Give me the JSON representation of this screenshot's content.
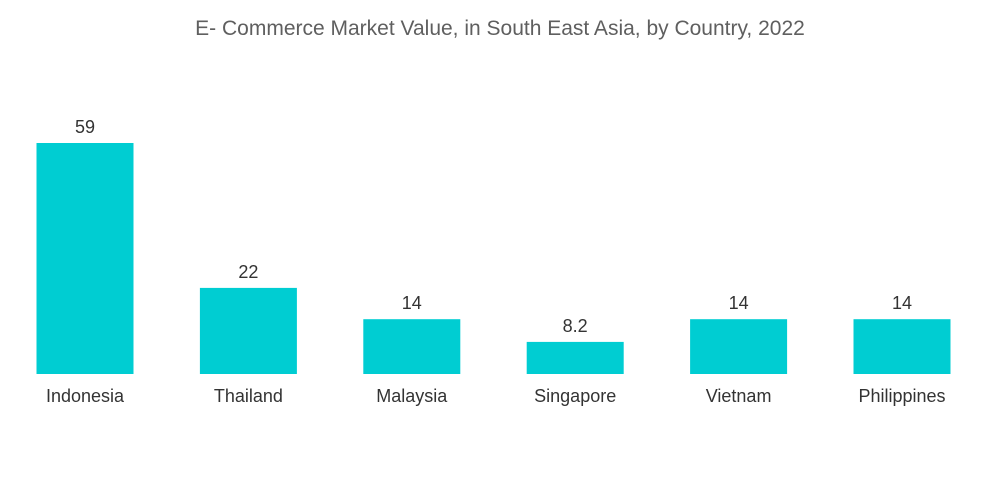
{
  "chart_data": {
    "type": "bar",
    "title": "E- Commerce Market Value, in South East Asia, by Country, 2022",
    "xlabel": "",
    "ylabel": "",
    "categories": [
      "Indonesia",
      "Thailand",
      "Malaysia",
      "Singapore",
      "Vietnam",
      "Philippines"
    ],
    "values": [
      59,
      22,
      14,
      8.2,
      14,
      14
    ],
    "value_labels": [
      "59",
      "22",
      "14",
      "8.2",
      "14",
      "14"
    ],
    "ylim": [
      0,
      59
    ],
    "grid": false,
    "legend": "none",
    "bar_color": "#00cdd2"
  }
}
